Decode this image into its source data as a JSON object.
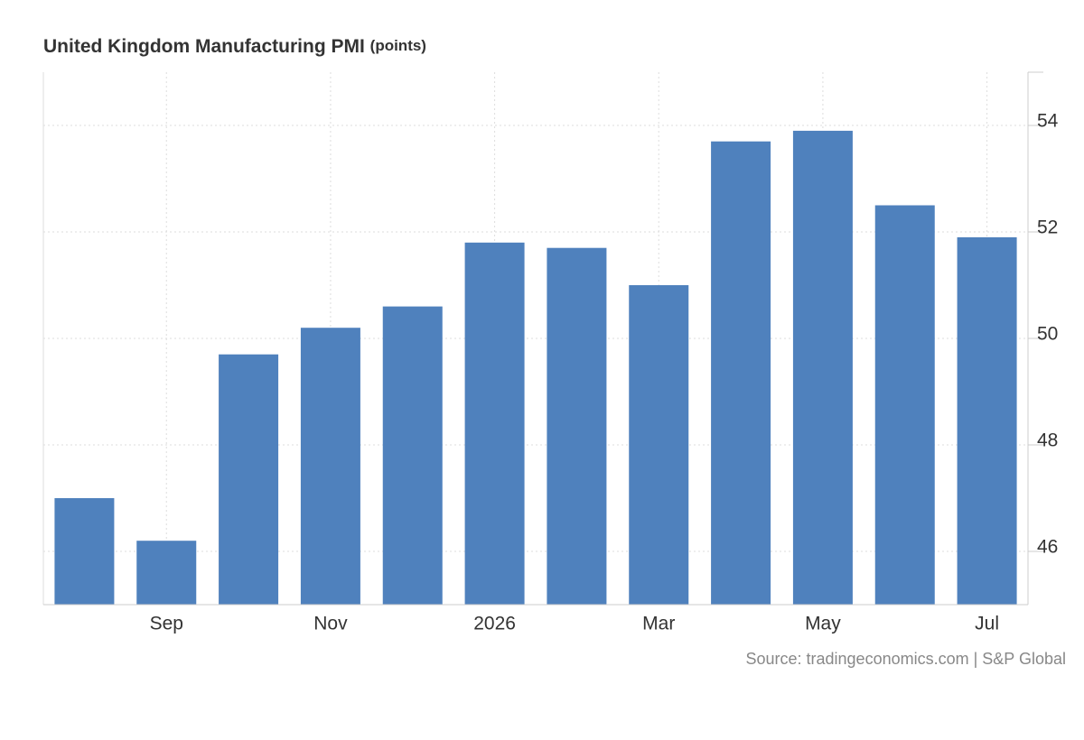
{
  "chart_data": {
    "type": "bar",
    "title": "United Kingdom Manufacturing PMI",
    "units": "(points)",
    "categories": [
      null,
      "Sep",
      null,
      "Nov",
      null,
      "2026",
      null,
      "Mar",
      null,
      "May",
      null,
      "Jul"
    ],
    "values": [
      47.0,
      46.2,
      49.7,
      50.2,
      50.6,
      51.8,
      51.7,
      51.0,
      53.7,
      53.9,
      52.5,
      51.9
    ],
    "color": "#4f81bd",
    "ylim": [
      45,
      55
    ],
    "yticks": [
      46,
      48,
      50,
      52,
      54
    ],
    "grid": true,
    "source": "Source: tradingeconomics.com | S&P Global"
  }
}
